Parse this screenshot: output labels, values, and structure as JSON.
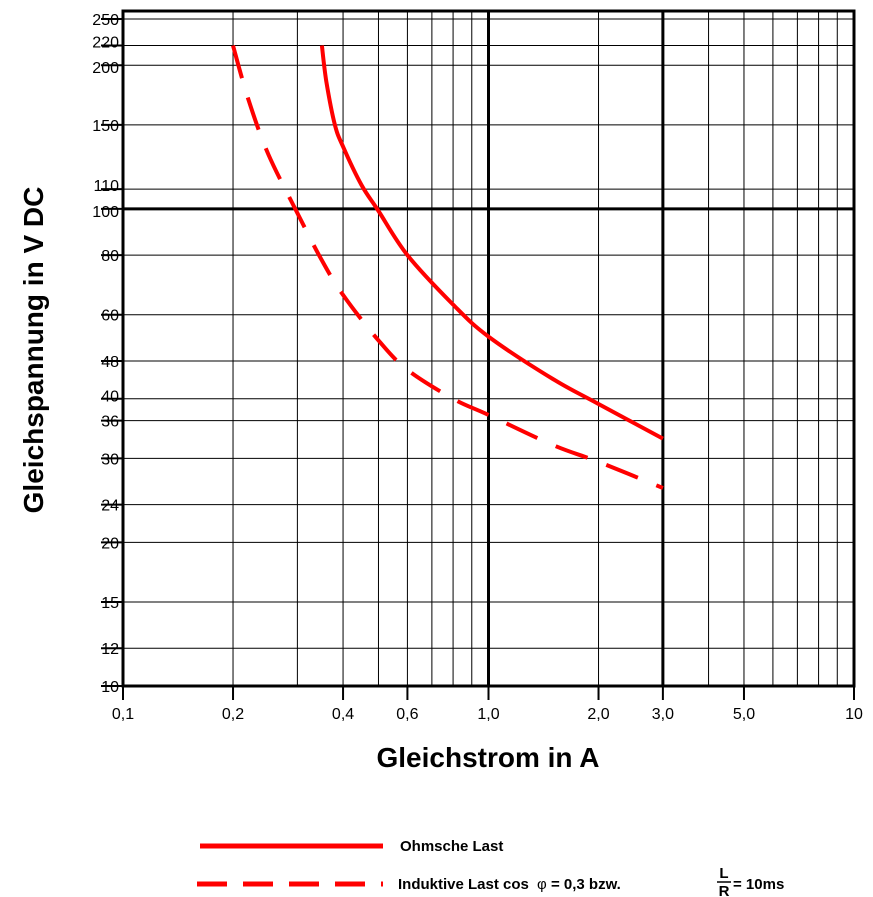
{
  "chart_data": {
    "type": "line",
    "xscale": "log",
    "yscale": "log",
    "xlim": [
      0.1,
      10
    ],
    "ylim": [
      10,
      260
    ],
    "grid": true,
    "xlabel": "Gleichstrom in A",
    "ylabel": "Gleichspannung in V DC",
    "x_tick_values": [
      0.1,
      0.2,
      0.4,
      0.6,
      1.0,
      2.0,
      3.0,
      5.0,
      10
    ],
    "x_tick_labels": [
      "0,1",
      "0,2",
      "0,4",
      "0,6",
      "1,0",
      "2,0",
      "3,0",
      "5,0",
      "10"
    ],
    "y_tick_values": [
      250,
      220,
      200,
      150,
      110,
      100,
      80,
      60,
      48,
      40,
      36,
      30,
      24,
      20,
      15,
      12,
      10
    ],
    "y_tick_labels": [
      "250",
      "220",
      "200",
      "150",
      "110",
      "100",
      "80",
      "60",
      "48",
      "40",
      "36",
      "30",
      "24",
      "20",
      "15",
      "12",
      "10"
    ],
    "series": [
      {
        "name": "Ohmsche Last",
        "style": "solid",
        "color": "#ff0000",
        "x": [
          0.35,
          0.36,
          0.38,
          0.4,
          0.45,
          0.5,
          0.6,
          0.8,
          1.0,
          1.5,
          2.0,
          3.0
        ],
        "y": [
          220,
          185,
          150,
          135,
          112,
          99,
          80,
          63,
          54,
          44,
          39,
          33
        ]
      },
      {
        "name": "Induktive Last",
        "style": "dashed",
        "color": "#ff0000",
        "x": [
          0.2,
          0.22,
          0.25,
          0.3,
          0.35,
          0.4,
          0.5,
          0.6,
          0.8,
          1.0,
          1.5,
          2.0,
          3.0
        ],
        "y": [
          220,
          170,
          130,
          98,
          78,
          66,
          53,
          46,
          40,
          37,
          32,
          29.5,
          26
        ]
      }
    ],
    "legend": {
      "position": "bottom",
      "solid_label": "Ohmsche Last",
      "dashed_prefix": "Induktive Last  cos",
      "phi": "φ",
      "dashed_mid": " = 0,3  bzw. ",
      "frac_num": "L",
      "frac_den": "R",
      "dashed_suffix": "= 10ms"
    }
  }
}
